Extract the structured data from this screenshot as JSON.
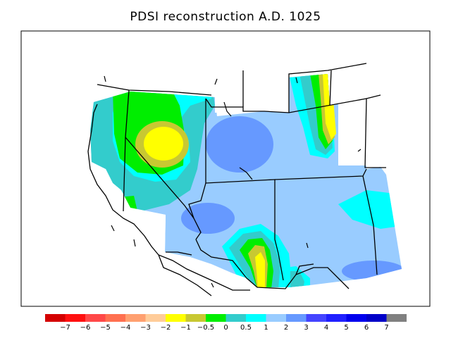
{
  "title": "PDSI reconstruction A.D. 1025",
  "colorbar": {
    "colors": [
      "#d40000",
      "#ff1010",
      "#ff4848",
      "#ff7050",
      "#ffa070",
      "#ffcc99",
      "#ffff00",
      "#c8c832",
      "#00ee00",
      "#33cccc",
      "#00ffff",
      "#99ccff",
      "#6699ff",
      "#4444ff",
      "#2020ff",
      "#0000ee",
      "#0000c8",
      "#808080"
    ],
    "labels": [
      "−7",
      "−6",
      "−5",
      "−4",
      "−3",
      "−2",
      "−1",
      "−0.5",
      "0",
      "0.5",
      "1",
      "2",
      "3",
      "4",
      "5",
      "6",
      "7"
    ]
  },
  "map": {
    "region": "Western United States",
    "fill_colors": {
      "dry_yellow": "#ffff00",
      "olive": "#c8c832",
      "green": "#00ee00",
      "teal": "#33cccc",
      "cyan": "#00ffff",
      "light_blue": "#99ccff",
      "mid_blue": "#6699ff"
    }
  }
}
